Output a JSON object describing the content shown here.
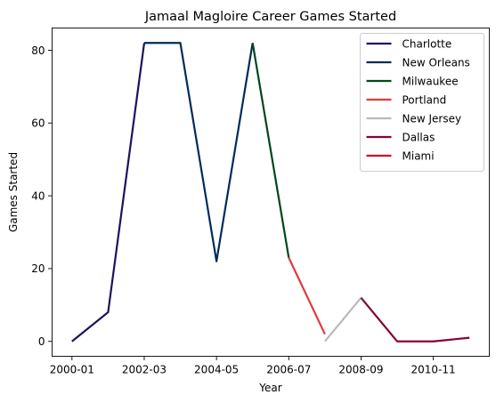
{
  "chart_data": {
    "type": "line",
    "title": "Jamaal Magloire Career Games Started",
    "xlabel": "Year",
    "ylabel": "Games Started",
    "x_ticks": [
      "2000-01",
      "2002-03",
      "2004-05",
      "2006-07",
      "2008-09",
      "2010-11"
    ],
    "y_ticks": [
      0,
      20,
      40,
      60,
      80
    ],
    "xlim": [
      -0.55,
      11.55
    ],
    "ylim": [
      -4.1,
      86.1
    ],
    "legend_position": "top-right",
    "grid": false,
    "series": [
      {
        "name": "Charlotte",
        "color": "#1d1160",
        "points": [
          [
            "2000-01",
            0
          ],
          [
            "2001-02",
            8
          ],
          [
            "2002-03",
            82
          ]
        ]
      },
      {
        "name": "New Orleans",
        "color": "#002b5c",
        "points": [
          [
            "2002-03",
            82
          ],
          [
            "2003-04",
            82
          ],
          [
            "2004-05",
            22
          ],
          [
            "2005-06",
            82
          ]
        ]
      },
      {
        "name": "Milwaukee",
        "color": "#00471b",
        "points": [
          [
            "2005-06",
            82
          ],
          [
            "2006-07",
            23
          ]
        ]
      },
      {
        "name": "Portland",
        "color": "#e03a3e",
        "points": [
          [
            "2006-07",
            23
          ],
          [
            "2007-08",
            2
          ]
        ]
      },
      {
        "name": "New Jersey",
        "color": "#bababa",
        "points": [
          [
            "2007-08",
            0
          ],
          [
            "2008-09",
            12
          ]
        ]
      },
      {
        "name": "Dallas",
        "color": "#860038",
        "points": [
          [
            "2008-09",
            12
          ],
          [
            "2009-10",
            0
          ],
          [
            "2010-11",
            0
          ],
          [
            "2011-12",
            1
          ]
        ]
      },
      {
        "name": "Miami",
        "color": "#c8102e",
        "points": []
      }
    ]
  }
}
